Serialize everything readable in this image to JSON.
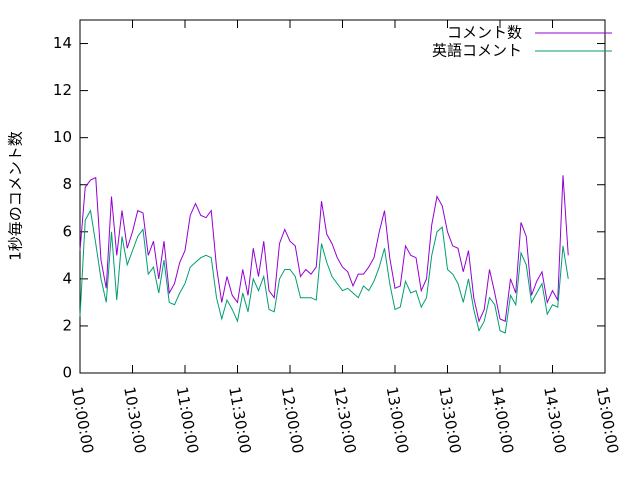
{
  "chart_data": {
    "type": "line",
    "ylabel": "1秒毎のコメント数",
    "x": [
      "10:00:00",
      "10:03:00",
      "10:06:00",
      "10:09:00",
      "10:12:00",
      "10:15:00",
      "10:18:00",
      "10:21:00",
      "10:24:00",
      "10:27:00",
      "10:30:00",
      "10:33:00",
      "10:36:00",
      "10:39:00",
      "10:42:00",
      "10:45:00",
      "10:48:00",
      "10:51:00",
      "10:54:00",
      "10:57:00",
      "11:00:00",
      "11:03:00",
      "11:06:00",
      "11:09:00",
      "11:12:00",
      "11:15:00",
      "11:18:00",
      "11:21:00",
      "11:24:00",
      "11:27:00",
      "11:30:00",
      "11:33:00",
      "11:36:00",
      "11:39:00",
      "11:42:00",
      "11:45:00",
      "11:48:00",
      "11:51:00",
      "11:54:00",
      "11:57:00",
      "12:00:00",
      "12:03:00",
      "12:06:00",
      "12:09:00",
      "12:12:00",
      "12:15:00",
      "12:18:00",
      "12:21:00",
      "12:24:00",
      "12:27:00",
      "12:30:00",
      "12:33:00",
      "12:36:00",
      "12:39:00",
      "12:42:00",
      "12:45:00",
      "12:48:00",
      "12:51:00",
      "12:54:00",
      "12:57:00",
      "13:00:00",
      "13:03:00",
      "13:06:00",
      "13:09:00",
      "13:12:00",
      "13:15:00",
      "13:18:00",
      "13:21:00",
      "13:24:00",
      "13:27:00",
      "13:30:00",
      "13:33:00",
      "13:36:00",
      "13:39:00",
      "13:42:00",
      "13:45:00",
      "13:48:00",
      "13:51:00",
      "13:54:00",
      "13:57:00",
      "14:00:00",
      "14:03:00",
      "14:06:00",
      "14:09:00",
      "14:12:00",
      "14:15:00",
      "14:18:00",
      "14:21:00",
      "14:24:00",
      "14:27:00",
      "14:30:00",
      "14:33:00",
      "14:36:00",
      "14:39:00"
    ],
    "series": [
      {
        "name": "コメント数",
        "color": "#9400d3",
        "values": [
          5.2,
          7.9,
          8.2,
          8.3,
          4.8,
          3.6,
          7.5,
          5.0,
          6.9,
          5.3,
          6.0,
          6.9,
          6.8,
          5.0,
          5.6,
          4.0,
          5.6,
          3.4,
          3.8,
          4.7,
          5.2,
          6.7,
          7.2,
          6.7,
          6.6,
          6.9,
          4.5,
          3.0,
          4.1,
          3.3,
          3.0,
          4.4,
          3.3,
          5.3,
          4.1,
          5.6,
          3.5,
          3.2,
          5.5,
          6.1,
          5.6,
          5.4,
          4.1,
          4.4,
          4.2,
          4.5,
          7.3,
          5.9,
          5.5,
          4.9,
          4.5,
          4.3,
          3.7,
          4.2,
          4.2,
          4.5,
          4.9,
          6.0,
          6.9,
          4.9,
          3.6,
          3.7,
          5.4,
          5.0,
          4.9,
          3.5,
          4.0,
          6.3,
          7.5,
          7.1,
          6.0,
          5.4,
          5.3,
          4.3,
          5.2,
          3.2,
          2.2,
          2.7,
          4.4,
          3.4,
          2.3,
          2.2,
          4.0,
          3.4,
          6.4,
          5.8,
          3.3,
          3.9,
          4.3,
          3.0,
          3.5,
          3.1,
          8.4,
          5.0
        ]
      },
      {
        "name": "英語コメント",
        "color": "#009e73",
        "values": [
          2.4,
          6.5,
          6.9,
          5.5,
          4.0,
          3.0,
          6.0,
          3.1,
          5.8,
          4.6,
          5.2,
          5.8,
          6.1,
          4.2,
          4.5,
          3.4,
          4.8,
          3.0,
          2.9,
          3.4,
          3.8,
          4.5,
          4.7,
          4.9,
          5.0,
          4.9,
          3.2,
          2.3,
          3.1,
          2.7,
          2.2,
          3.4,
          2.6,
          4.0,
          3.5,
          4.1,
          2.7,
          2.6,
          4.0,
          4.4,
          4.4,
          4.1,
          3.2,
          3.2,
          3.2,
          3.1,
          5.5,
          4.7,
          4.1,
          3.8,
          3.5,
          3.6,
          3.4,
          3.2,
          3.7,
          3.5,
          3.9,
          4.5,
          5.3,
          3.8,
          2.7,
          2.8,
          3.9,
          3.4,
          3.5,
          2.8,
          3.2,
          5.0,
          6.0,
          6.2,
          4.4,
          4.2,
          3.8,
          3.0,
          4.0,
          2.7,
          1.8,
          2.2,
          3.2,
          2.9,
          1.8,
          1.7,
          3.3,
          2.9,
          5.1,
          4.6,
          3.0,
          3.4,
          3.8,
          2.5,
          2.9,
          2.8,
          5.4,
          4.0
        ]
      }
    ],
    "xlim": [
      "10:00:00",
      "15:00:00"
    ],
    "xticks": [
      "10:00:00",
      "10:30:00",
      "11:00:00",
      "11:30:00",
      "12:00:00",
      "12:30:00",
      "13:00:00",
      "13:30:00",
      "14:00:00",
      "14:30:00",
      "15:00:00"
    ],
    "ylim": [
      0,
      15
    ],
    "yticks": [
      0,
      2,
      4,
      6,
      8,
      10,
      12,
      14
    ],
    "legend": "top-right"
  }
}
